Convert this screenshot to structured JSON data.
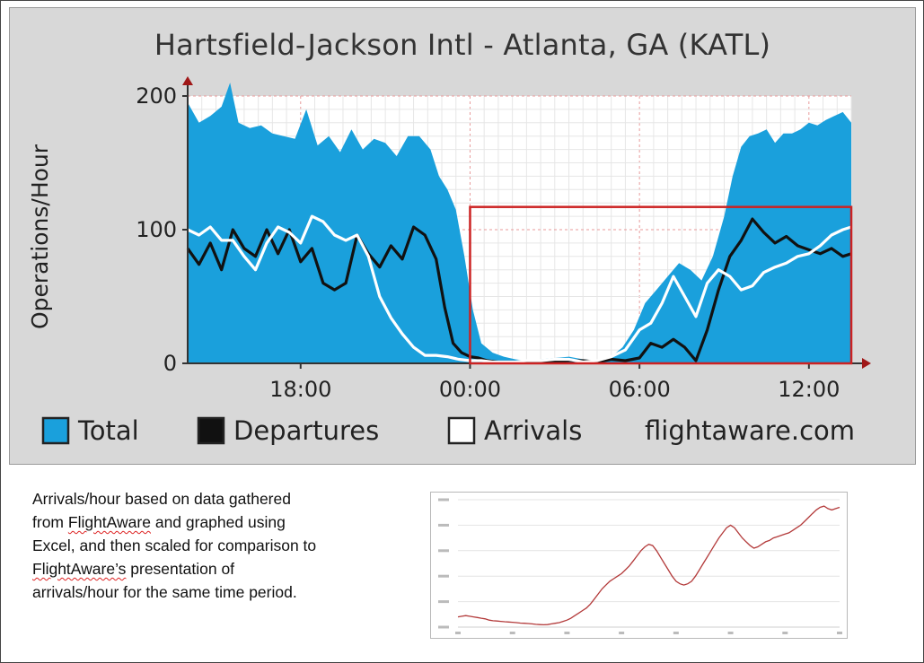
{
  "chart_data": [
    {
      "type": "area",
      "title": "Hartsfield-Jackson Intl - Atlanta, GA (KATL)",
      "ylabel": "Operations/Hour",
      "xlabel": "",
      "x_unit": "hours",
      "ylim": [
        0,
        200
      ],
      "xlim": [
        14,
        37.5
      ],
      "xticks": [
        {
          "value": 18,
          "label": "18:00"
        },
        {
          "value": 24,
          "label": "00:00"
        },
        {
          "value": 30,
          "label": "06:00"
        },
        {
          "value": 36,
          "label": "12:00"
        }
      ],
      "yticks": [
        {
          "value": 0,
          "label": "0"
        },
        {
          "value": 100,
          "label": "100"
        },
        {
          "value": 200,
          "label": "200"
        }
      ],
      "grid": true,
      "legend_position": "bottom",
      "series": [
        {
          "name": "Total",
          "color": "#1aa0dc",
          "x": [
            14,
            14.4,
            14.8,
            15.2,
            15.5,
            15.8,
            16.2,
            16.6,
            17,
            17.4,
            17.8,
            18.2,
            18.6,
            19,
            19.4,
            19.8,
            20.2,
            20.6,
            21,
            21.4,
            21.8,
            22.2,
            22.6,
            22.9,
            23.2,
            23.5,
            23.8,
            24.1,
            24.4,
            24.8,
            25.2,
            25.6,
            26,
            26.5,
            27,
            27.5,
            28,
            28.5,
            29,
            29.4,
            29.8,
            30.2,
            30.6,
            31,
            31.4,
            31.8,
            32.2,
            32.6,
            33,
            33.3,
            33.6,
            33.9,
            34.2,
            34.5,
            34.8,
            35.1,
            35.4,
            35.7,
            36,
            36.3,
            36.6,
            36.9,
            37.2,
            37.5
          ],
          "values": [
            195,
            180,
            185,
            192,
            210,
            180,
            176,
            178,
            172,
            170,
            168,
            190,
            163,
            170,
            158,
            175,
            160,
            168,
            165,
            155,
            170,
            170,
            160,
            140,
            130,
            115,
            80,
            40,
            15,
            8,
            5,
            3,
            2,
            3,
            4,
            5,
            3,
            2,
            5,
            12,
            25,
            45,
            55,
            65,
            75,
            70,
            62,
            80,
            110,
            140,
            162,
            170,
            172,
            175,
            165,
            172,
            172,
            175,
            180,
            178,
            182,
            185,
            188,
            180
          ]
        },
        {
          "name": "Departures",
          "color": "#111111",
          "x": [
            14,
            14.4,
            14.8,
            15.2,
            15.6,
            16,
            16.4,
            16.8,
            17.2,
            17.6,
            18,
            18.4,
            18.8,
            19.2,
            19.6,
            20,
            20.4,
            20.8,
            21.2,
            21.6,
            22,
            22.4,
            22.8,
            23.1,
            23.4,
            23.7,
            24,
            24.3,
            24.6,
            25,
            25.5,
            26,
            26.5,
            27,
            27.5,
            28,
            28.5,
            29,
            29.5,
            30,
            30.4,
            30.8,
            31.2,
            31.6,
            32,
            32.4,
            32.8,
            33.2,
            33.6,
            34,
            34.4,
            34.8,
            35.2,
            35.6,
            36,
            36.4,
            36.8,
            37.2,
            37.5
          ],
          "values": [
            86,
            74,
            90,
            70,
            100,
            86,
            80,
            100,
            82,
            100,
            76,
            86,
            60,
            55,
            60,
            96,
            82,
            72,
            88,
            78,
            102,
            96,
            78,
            42,
            15,
            8,
            5,
            4,
            2,
            1,
            1,
            1,
            1,
            1,
            2,
            2,
            1,
            3,
            2,
            4,
            15,
            12,
            18,
            12,
            2,
            25,
            55,
            80,
            92,
            108,
            98,
            90,
            95,
            88,
            85,
            82,
            86,
            80,
            82
          ]
        },
        {
          "name": "Arrivals",
          "color": "#ffffff",
          "x": [
            14,
            14.4,
            14.8,
            15.2,
            15.6,
            16,
            16.4,
            16.8,
            17.2,
            17.6,
            18,
            18.4,
            18.8,
            19.2,
            19.6,
            20,
            20.4,
            20.8,
            21.2,
            21.6,
            22,
            22.4,
            22.8,
            23.2,
            23.6,
            24,
            24.4,
            24.8,
            25.2,
            25.6,
            26,
            26.5,
            27,
            27.5,
            28,
            28.5,
            29,
            29.5,
            30,
            30.4,
            30.8,
            31.2,
            31.6,
            32,
            32.4,
            32.8,
            33.2,
            33.6,
            34,
            34.4,
            34.8,
            35.2,
            35.6,
            36,
            36.4,
            36.8,
            37.2,
            37.5
          ],
          "values": [
            100,
            96,
            102,
            92,
            92,
            80,
            70,
            90,
            102,
            98,
            90,
            110,
            106,
            96,
            92,
            96,
            80,
            50,
            34,
            22,
            12,
            6,
            6,
            5,
            3,
            2,
            2,
            1,
            1,
            1,
            2,
            2,
            3,
            3,
            1,
            2,
            5,
            10,
            25,
            30,
            45,
            65,
            50,
            35,
            60,
            70,
            65,
            55,
            58,
            68,
            72,
            75,
            80,
            82,
            88,
            96,
            100,
            102
          ]
        }
      ]
    },
    {
      "type": "line",
      "title": "",
      "series": [
        {
          "name": "",
          "color": "#b33a3a",
          "values": [
            8,
            8.5,
            9,
            8.5,
            8,
            7.5,
            7,
            6.5,
            5.5,
            5,
            4.8,
            4.5,
            4.2,
            4,
            3.8,
            3.5,
            3.2,
            3,
            2.8,
            2.5,
            2.2,
            2,
            1.8,
            2,
            2.5,
            3,
            3.5,
            4.5,
            5.5,
            7,
            9,
            11,
            13,
            15,
            18,
            22,
            26,
            30,
            33,
            36,
            38,
            40,
            42,
            45,
            48,
            52,
            56,
            60,
            63,
            65,
            64,
            60,
            55,
            50,
            45,
            40,
            36,
            34,
            33,
            34,
            36,
            40,
            45,
            50,
            55,
            60,
            65,
            70,
            74,
            78,
            80,
            78,
            74,
            70,
            67,
            64,
            62,
            63,
            65,
            67,
            68,
            70,
            71,
            72,
            73,
            74,
            76,
            78,
            80,
            83,
            86,
            89,
            92,
            94,
            95,
            93,
            92,
            93,
            94
          ]
        }
      ]
    }
  ],
  "legend": {
    "total_label": "Total",
    "departures_label": "Departures",
    "arrivals_label": "Arrivals",
    "source": "flightaware.com"
  },
  "caption": {
    "line1": "Arrivals/hour based on data gathered",
    "line2_pre": "from ",
    "line2_flag": "FlightAware",
    "line2_post": " and graphed using",
    "line3": "Excel, and then scaled for comparison to",
    "line4_flag": "FlightAware’s",
    "line4_post": " presentation of",
    "line5": "arrivals/hour for the same time period."
  },
  "highlight": {
    "x_start": 24,
    "x_end": 37.5,
    "y_top": 117,
    "color": "#cc2222"
  }
}
